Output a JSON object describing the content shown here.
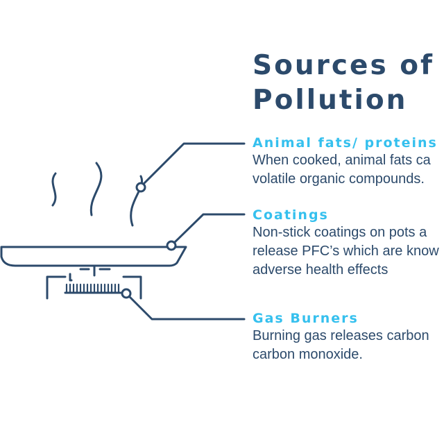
{
  "title": {
    "line1": "Sources of",
    "line2": "Pollution"
  },
  "items": [
    {
      "heading": "Animal fats/ proteins",
      "desc": [
        "When cooked, animal fats ca",
        "volatile organic compounds."
      ]
    },
    {
      "heading": "Coatings",
      "desc": [
        "Non-stick coatings on pots a",
        "release PFC’s which are know",
        "adverse health effects"
      ]
    },
    {
      "heading": "Gas Burners",
      "desc": [
        "Burning gas releases carbon",
        "carbon monoxide."
      ]
    }
  ],
  "colors": {
    "line": "#2c4a6b",
    "heading": "#35c0ee",
    "text": "#2c4a6b"
  },
  "icons": [
    "steam-icon",
    "frying-pan-icon",
    "gas-burner-icon"
  ]
}
